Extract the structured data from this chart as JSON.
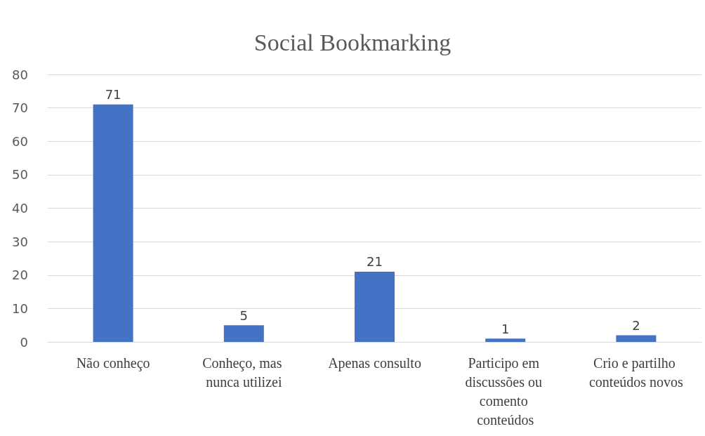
{
  "chart_data": {
    "type": "bar",
    "title": "Social Bookmarking",
    "categories": [
      "Não conheço",
      "Conheço, mas nunca utilizei",
      "Apenas consulto",
      "Participo em discussões ou comento conteúdos",
      "Crio e partilho conteúdos novos"
    ],
    "values": [
      71,
      5,
      21,
      1,
      2
    ],
    "color": "#4472c4",
    "ylim": [
      0,
      80
    ],
    "yticks": [
      0,
      10,
      20,
      30,
      40,
      50,
      60,
      70,
      80
    ],
    "grid": "y",
    "data_labels": true
  }
}
